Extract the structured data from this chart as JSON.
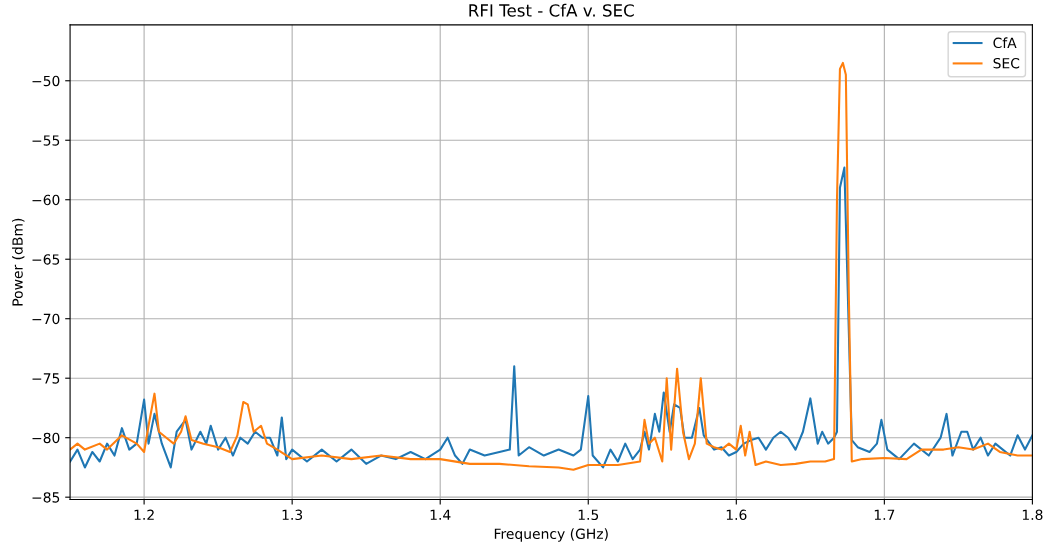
{
  "chart_data": {
    "type": "line",
    "title": "RFI Test - CfA v. SEC",
    "xlabel": "Frequency (GHz)",
    "ylabel": "Power (dBm)",
    "xlim": [
      1.15,
      1.8
    ],
    "xticks": [
      1.2,
      1.3,
      1.4,
      1.5,
      1.6,
      1.7,
      1.8
    ],
    "ylim": [
      -85.2,
      -45.3
    ],
    "yticks": [
      {
        "value": -85,
        "label": "−85"
      },
      {
        "value": -80,
        "label": "−80"
      },
      {
        "value": -75,
        "label": "−75"
      },
      {
        "value": -70,
        "label": "−70"
      },
      {
        "value": -65,
        "label": "−65"
      },
      {
        "value": -60,
        "label": "−60"
      },
      {
        "value": -55,
        "label": "−55"
      },
      {
        "value": -50,
        "label": "−50"
      }
    ],
    "grid": true,
    "legend": "top right",
    "series": [
      {
        "name": "CfA",
        "color": "#1f77b4",
        "x": [
          1.15,
          1.155,
          1.16,
          1.165,
          1.17,
          1.175,
          1.18,
          1.185,
          1.19,
          1.195,
          1.2,
          1.203,
          1.207,
          1.212,
          1.218,
          1.222,
          1.228,
          1.232,
          1.238,
          1.242,
          1.245,
          1.25,
          1.255,
          1.26,
          1.265,
          1.27,
          1.275,
          1.28,
          1.285,
          1.29,
          1.293,
          1.296,
          1.3,
          1.31,
          1.32,
          1.33,
          1.34,
          1.35,
          1.36,
          1.37,
          1.38,
          1.39,
          1.4,
          1.405,
          1.41,
          1.415,
          1.42,
          1.43,
          1.44,
          1.447,
          1.45,
          1.453,
          1.46,
          1.47,
          1.48,
          1.49,
          1.495,
          1.5,
          1.503,
          1.51,
          1.515,
          1.52,
          1.525,
          1.53,
          1.535,
          1.538,
          1.541,
          1.545,
          1.548,
          1.551,
          1.555,
          1.558,
          1.562,
          1.565,
          1.57,
          1.575,
          1.578,
          1.585,
          1.59,
          1.595,
          1.6,
          1.605,
          1.61,
          1.615,
          1.62,
          1.625,
          1.63,
          1.635,
          1.64,
          1.645,
          1.65,
          1.655,
          1.658,
          1.662,
          1.666,
          1.668,
          1.67,
          1.673,
          1.678,
          1.682,
          1.69,
          1.695,
          1.698,
          1.702,
          1.71,
          1.72,
          1.73,
          1.738,
          1.742,
          1.746,
          1.752,
          1.756,
          1.76,
          1.765,
          1.77,
          1.775,
          1.78,
          1.785,
          1.79,
          1.795,
          1.8
        ],
        "values": [
          -82.0,
          -81.0,
          -82.5,
          -81.2,
          -82.0,
          -80.5,
          -81.5,
          -79.2,
          -81.0,
          -80.5,
          -76.8,
          -80.5,
          -78.0,
          -80.5,
          -82.5,
          -79.5,
          -78.5,
          -81.0,
          -79.5,
          -80.5,
          -79.0,
          -81.0,
          -80.0,
          -81.5,
          -80.0,
          -80.5,
          -79.5,
          -80.0,
          -80.0,
          -81.5,
          -78.3,
          -81.8,
          -81.0,
          -82.0,
          -81.0,
          -82.0,
          -81.0,
          -82.2,
          -81.5,
          -81.8,
          -81.2,
          -81.8,
          -81.0,
          -80.0,
          -81.5,
          -82.2,
          -81.0,
          -81.5,
          -81.2,
          -81.0,
          -74.0,
          -81.5,
          -80.8,
          -81.5,
          -81.0,
          -81.5,
          -81.0,
          -76.5,
          -81.5,
          -82.5,
          -81.0,
          -82.0,
          -80.5,
          -81.8,
          -81.0,
          -79.5,
          -81.0,
          -78.0,
          -79.5,
          -76.2,
          -79.5,
          -77.2,
          -77.5,
          -80.0,
          -80.0,
          -77.5,
          -79.8,
          -81.0,
          -80.8,
          -81.5,
          -81.2,
          -80.5,
          -80.2,
          -80.0,
          -81.0,
          -80.0,
          -79.5,
          -80.0,
          -81.0,
          -79.5,
          -76.7,
          -80.5,
          -79.5,
          -80.5,
          -80.0,
          -79.5,
          -59.0,
          -57.3,
          -80.2,
          -80.8,
          -81.2,
          -80.5,
          -78.5,
          -81.0,
          -81.8,
          -80.5,
          -81.5,
          -80.0,
          -78.0,
          -81.5,
          -79.5,
          -79.5,
          -81.0,
          -80.0,
          -81.5,
          -80.5,
          -81.0,
          -81.5,
          -79.8,
          -81.0,
          -79.8
        ]
      },
      {
        "name": "SEC",
        "color": "#ff7f0e",
        "x": [
          1.15,
          1.155,
          1.16,
          1.17,
          1.175,
          1.185,
          1.195,
          1.2,
          1.203,
          1.207,
          1.21,
          1.215,
          1.22,
          1.225,
          1.228,
          1.232,
          1.24,
          1.25,
          1.258,
          1.263,
          1.267,
          1.27,
          1.274,
          1.279,
          1.283,
          1.29,
          1.3,
          1.32,
          1.34,
          1.36,
          1.38,
          1.4,
          1.42,
          1.44,
          1.46,
          1.48,
          1.49,
          1.5,
          1.52,
          1.535,
          1.538,
          1.541,
          1.545,
          1.55,
          1.553,
          1.556,
          1.56,
          1.564,
          1.568,
          1.572,
          1.576,
          1.58,
          1.585,
          1.59,
          1.595,
          1.6,
          1.603,
          1.606,
          1.609,
          1.613,
          1.62,
          1.63,
          1.64,
          1.65,
          1.66,
          1.666,
          1.668,
          1.67,
          1.672,
          1.674,
          1.676,
          1.678,
          1.685,
          1.7,
          1.715,
          1.725,
          1.74,
          1.75,
          1.76,
          1.77,
          1.778,
          1.79,
          1.8
        ],
        "values": [
          -81.0,
          -80.5,
          -81.0,
          -80.5,
          -81.0,
          -79.8,
          -80.5,
          -81.2,
          -79.0,
          -76.3,
          -79.5,
          -80.0,
          -80.5,
          -79.5,
          -78.2,
          -80.2,
          -80.5,
          -80.8,
          -81.2,
          -79.8,
          -77.0,
          -77.2,
          -79.5,
          -79.0,
          -80.5,
          -81.0,
          -81.8,
          -81.5,
          -81.8,
          -81.5,
          -81.8,
          -81.8,
          -82.2,
          -82.2,
          -82.4,
          -82.5,
          -82.7,
          -82.3,
          -82.3,
          -82.0,
          -78.5,
          -80.5,
          -80.0,
          -82.0,
          -75.0,
          -81.0,
          -74.2,
          -79.5,
          -81.8,
          -80.5,
          -75.0,
          -80.5,
          -80.8,
          -81.0,
          -80.5,
          -81.0,
          -79.0,
          -81.5,
          -79.5,
          -82.3,
          -82.0,
          -82.3,
          -82.2,
          -82.0,
          -82.0,
          -81.8,
          -60.0,
          -49.0,
          -48.5,
          -49.5,
          -68.0,
          -82.0,
          -81.8,
          -81.7,
          -81.8,
          -81.0,
          -81.0,
          -80.8,
          -81.0,
          -80.5,
          -81.2,
          -81.5,
          -81.5
        ]
      }
    ]
  }
}
